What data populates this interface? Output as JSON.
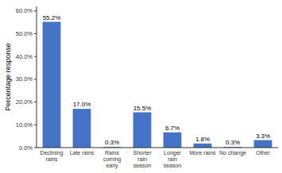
{
  "chart_data": {
    "type": "bar",
    "categories": [
      "Declining\nrains",
      "Late rains",
      "Rains\ncoming\nearly",
      "Shorter\nrain\nseason",
      "Longer\nrain\nseason",
      "More rains",
      "No change",
      "Other"
    ],
    "values": [
      55.2,
      17.0,
      0.3,
      15.5,
      6.7,
      1.8,
      0.3,
      3.3
    ],
    "value_labels": [
      "55.2%",
      "17.0%",
      "0.3%",
      "15.5%",
      "6.7%",
      "1.8%",
      "0.3%",
      "3.3%"
    ],
    "data_labels": true,
    "color": "#4472C4",
    "ylabel": "Percentage response",
    "ylim": [
      0,
      62
    ],
    "yticks": [
      {
        "value": 0,
        "label": "0.0%"
      },
      {
        "value": 10,
        "label": "10.0%"
      },
      {
        "value": 20,
        "label": "20.0%"
      },
      {
        "value": 30,
        "label": "30.0%"
      },
      {
        "value": 40,
        "label": "40.0%"
      },
      {
        "value": 50,
        "label": "50.0%"
      },
      {
        "value": 60,
        "label": "60.0%"
      }
    ],
    "grid": false
  }
}
